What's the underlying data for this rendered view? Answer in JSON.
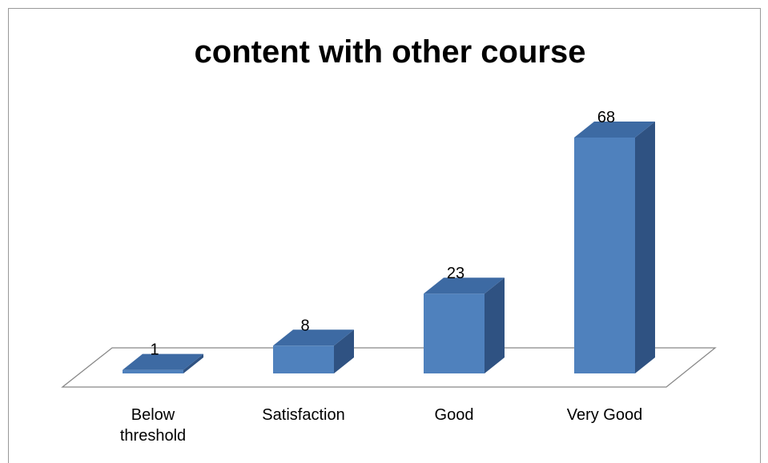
{
  "chart_data": {
    "type": "bar3d",
    "title": "content with other course",
    "categories": [
      "Below threshold",
      "Satisfaction",
      "Good",
      "Very Good"
    ],
    "values": [
      1,
      8,
      23,
      68
    ],
    "color": "#4f81bd"
  }
}
